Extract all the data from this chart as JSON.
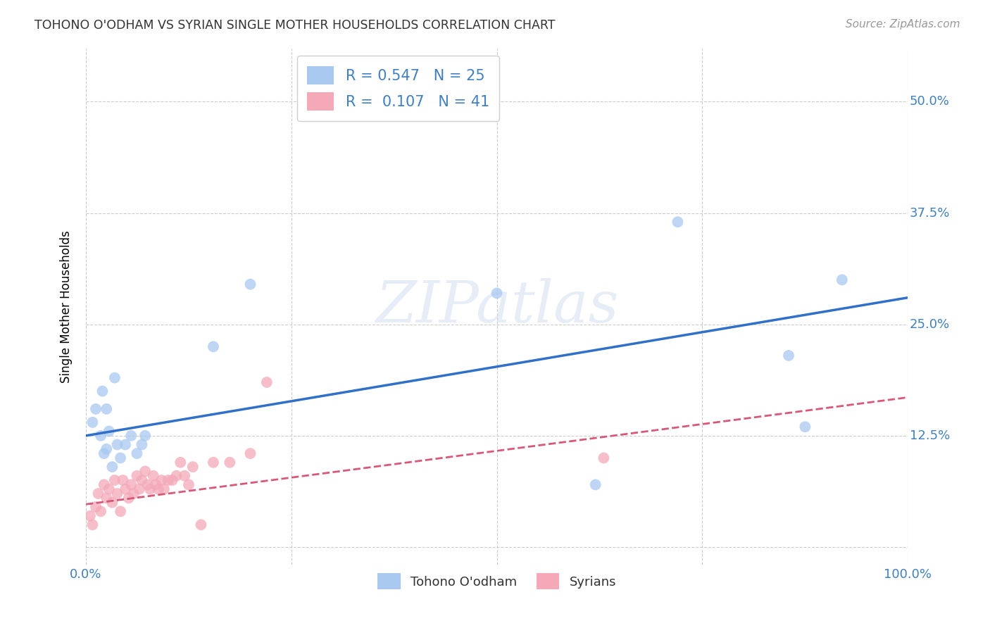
{
  "title": "TOHONO O'ODHAM VS SYRIAN SINGLE MOTHER HOUSEHOLDS CORRELATION CHART",
  "source": "Source: ZipAtlas.com",
  "ylabel": "Single Mother Households",
  "xlim": [
    0.0,
    1.0
  ],
  "ylim": [
    -0.02,
    0.56
  ],
  "x_ticks": [
    0.0,
    0.25,
    0.5,
    0.75,
    1.0
  ],
  "x_tick_labels": [
    "0.0%",
    "",
    "",
    "",
    "100.0%"
  ],
  "y_ticks": [
    0.0,
    0.125,
    0.25,
    0.375,
    0.5
  ],
  "y_tick_labels": [
    "",
    "12.5%",
    "25.0%",
    "37.5%",
    "50.0%"
  ],
  "blue_R": 0.547,
  "blue_N": 25,
  "pink_R": 0.107,
  "pink_N": 41,
  "blue_color": "#A8C8F0",
  "pink_color": "#F4A8B8",
  "blue_line_color": "#3070C8",
  "pink_line_color": "#D85878",
  "watermark_text": "ZIPatlas",
  "blue_x": [
    0.008,
    0.012,
    0.018,
    0.022,
    0.025,
    0.028,
    0.032,
    0.038,
    0.042,
    0.048,
    0.055,
    0.062,
    0.068,
    0.072,
    0.035,
    0.02,
    0.025,
    0.155,
    0.2,
    0.62,
    0.72,
    0.855,
    0.875,
    0.92,
    0.5
  ],
  "blue_y": [
    0.14,
    0.155,
    0.125,
    0.105,
    0.11,
    0.13,
    0.09,
    0.115,
    0.1,
    0.115,
    0.125,
    0.105,
    0.115,
    0.125,
    0.19,
    0.175,
    0.155,
    0.225,
    0.295,
    0.07,
    0.365,
    0.215,
    0.135,
    0.3,
    0.285
  ],
  "pink_x": [
    0.005,
    0.008,
    0.012,
    0.015,
    0.018,
    0.022,
    0.025,
    0.028,
    0.032,
    0.035,
    0.038,
    0.042,
    0.045,
    0.048,
    0.052,
    0.055,
    0.058,
    0.062,
    0.065,
    0.068,
    0.072,
    0.075,
    0.078,
    0.082,
    0.085,
    0.088,
    0.092,
    0.095,
    0.1,
    0.105,
    0.11,
    0.115,
    0.12,
    0.125,
    0.13,
    0.14,
    0.155,
    0.175,
    0.2,
    0.22,
    0.63
  ],
  "pink_y": [
    0.035,
    0.025,
    0.045,
    0.06,
    0.04,
    0.07,
    0.055,
    0.065,
    0.05,
    0.075,
    0.06,
    0.04,
    0.075,
    0.065,
    0.055,
    0.07,
    0.06,
    0.08,
    0.065,
    0.075,
    0.085,
    0.07,
    0.065,
    0.08,
    0.07,
    0.065,
    0.075,
    0.065,
    0.075,
    0.075,
    0.08,
    0.095,
    0.08,
    0.07,
    0.09,
    0.025,
    0.095,
    0.095,
    0.105,
    0.185,
    0.1
  ],
  "blue_intercept": 0.125,
  "blue_slope": 0.155,
  "pink_intercept": 0.048,
  "pink_slope": 0.12
}
